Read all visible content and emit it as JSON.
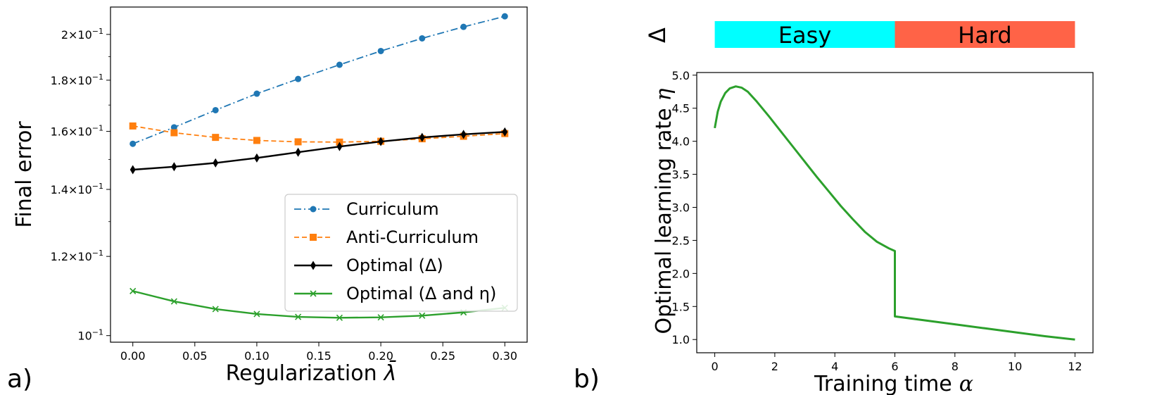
{
  "colors": {
    "curriculum": "#1f77b4",
    "anti_curriculum": "#ff7f0e",
    "optimal_delta": "#000000",
    "optimal_delta_eta": "#2ca02c",
    "easy_bar": "#00ffff",
    "hard_bar": "#ff6347"
  },
  "panel_labels": {
    "a": "a)",
    "b": "b)"
  },
  "chart_data": [
    {
      "type": "line",
      "panel": "a",
      "xlabel": "Regularization",
      "xlabel_symbol": "λ̄",
      "ylabel": "Final error",
      "yscale": "log",
      "xlim": [
        -0.018,
        0.318
      ],
      "ylim": [
        0.0985,
        0.213
      ],
      "xticks": [
        0.0,
        0.05,
        0.1,
        0.15,
        0.2,
        0.25,
        0.3
      ],
      "xtick_labels": [
        "0.00",
        "0.05",
        "0.10",
        "0.15",
        "0.20",
        "0.25",
        "0.30"
      ],
      "yticks": [
        0.1,
        0.12,
        0.14,
        0.16,
        0.18,
        0.2
      ],
      "ytick_mantissa": [
        "1",
        "1.2",
        "1.4",
        "1.6",
        "1.8",
        "2"
      ],
      "ytick_base": "10",
      "ytick_exp": "−1",
      "x": [
        0.0,
        0.0333,
        0.0667,
        0.1,
        0.1333,
        0.1667,
        0.2,
        0.2333,
        0.2667,
        0.3
      ],
      "series": [
        {
          "name": "Curriculum",
          "marker": "circle",
          "dash": "dashdot",
          "colorKey": "curriculum",
          "values": [
            0.1555,
            0.1615,
            0.168,
            0.1745,
            0.1805,
            0.1865,
            0.1925,
            0.1982,
            0.2035,
            0.2085
          ]
        },
        {
          "name": "Anti-Curriculum",
          "marker": "square",
          "dash": "dashed",
          "colorKey": "anti_curriculum",
          "values": [
            0.162,
            0.1595,
            0.1578,
            0.1567,
            0.1562,
            0.1561,
            0.1564,
            0.1573,
            0.1582,
            0.1592
          ]
        },
        {
          "name": "Optimal (Δ)",
          "marker": "diamond",
          "dash": "solid",
          "colorKey": "optimal_delta",
          "values": [
            0.1465,
            0.1475,
            0.1488,
            0.1505,
            0.1525,
            0.1545,
            0.1563,
            0.1578,
            0.1589,
            0.1598
          ]
        },
        {
          "name": "Optimal (Δ and η)",
          "marker": "x",
          "dash": "solid",
          "colorKey": "optimal_delta_eta",
          "values": [
            0.1108,
            0.1082,
            0.1063,
            0.1051,
            0.1044,
            0.1042,
            0.1043,
            0.1047,
            0.1055,
            0.1066
          ]
        }
      ],
      "legend": {
        "position": "bottom-right",
        "labels": [
          "Curriculum",
          "Anti-Curriculum",
          "Optimal (Δ)",
          "Optimal (Δ and η)"
        ]
      }
    },
    {
      "type": "line",
      "panel": "b",
      "xlabel": "Training time",
      "xlabel_symbol": "α",
      "ylabel": "Optimal learning rate",
      "ylabel_symbol": "η",
      "xlim": [
        -0.6,
        12.6
      ],
      "ylim": [
        0.8,
        5.04
      ],
      "xticks": [
        0,
        2,
        4,
        6,
        8,
        10,
        12
      ],
      "xtick_labels": [
        "0",
        "2",
        "4",
        "6",
        "8",
        "10",
        "12"
      ],
      "yticks": [
        1.0,
        1.5,
        2.0,
        2.5,
        3.0,
        3.5,
        4.0,
        4.5,
        5.0
      ],
      "ytick_labels": [
        "1.0",
        "1.5",
        "2.0",
        "2.5",
        "3.0",
        "3.5",
        "4.0",
        "4.5",
        "5.0"
      ],
      "series": [
        {
          "name": "Optimal learning rate",
          "colorKey": "optimal_delta_eta",
          "x": [
            0,
            0.1,
            0.2,
            0.35,
            0.5,
            0.7,
            0.9,
            1.1,
            1.4,
            1.8,
            2.2,
            2.6,
            3.0,
            3.4,
            3.8,
            4.2,
            4.6,
            5.0,
            5.4,
            5.8,
            6.0,
            6.0,
            7.0,
            8.0,
            9.0,
            10.0,
            11.0,
            12.0
          ],
          "values": [
            4.2,
            4.45,
            4.6,
            4.73,
            4.8,
            4.83,
            4.81,
            4.75,
            4.6,
            4.38,
            4.15,
            3.92,
            3.69,
            3.46,
            3.24,
            3.02,
            2.82,
            2.63,
            2.48,
            2.38,
            2.34,
            1.35,
            1.29,
            1.23,
            1.17,
            1.11,
            1.05,
            1.0
          ]
        }
      ],
      "phase_bar": {
        "axis_label": "Δ",
        "segments": [
          {
            "label": "Easy",
            "from": 0,
            "to": 6,
            "colorKey": "easy_bar"
          },
          {
            "label": "Hard",
            "from": 6,
            "to": 12,
            "colorKey": "hard_bar"
          }
        ]
      }
    }
  ]
}
